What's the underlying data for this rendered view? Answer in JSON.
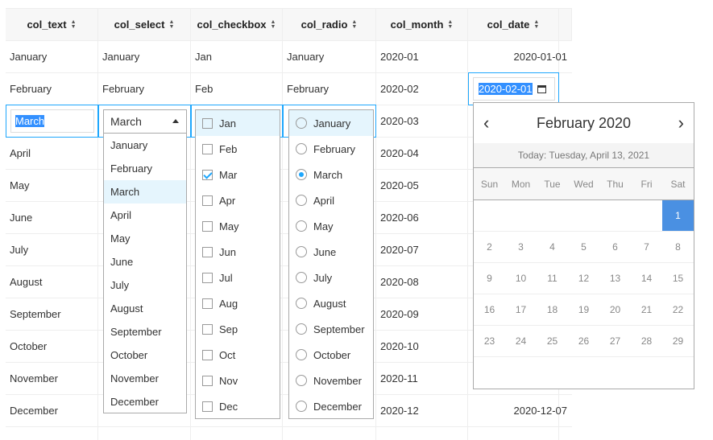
{
  "columns": [
    "col_text",
    "col_select",
    "col_checkbox",
    "col_radio",
    "col_month",
    "col_date"
  ],
  "rows": [
    [
      "January",
      "January",
      "Jan",
      "January",
      "2020-01",
      "2020-01-01"
    ],
    [
      "February",
      "February",
      "Feb",
      "February",
      "2020-02",
      ""
    ],
    [
      "",
      "",
      "",
      "",
      "2020-03",
      ""
    ],
    [
      "April",
      "",
      "",
      "",
      "2020-04",
      ""
    ],
    [
      "May",
      "",
      "",
      "",
      "2020-05",
      ""
    ],
    [
      "June",
      "",
      "",
      "",
      "2020-06",
      ""
    ],
    [
      "July",
      "",
      "",
      "",
      "2020-07",
      ""
    ],
    [
      "August",
      "",
      "",
      "",
      "2020-08",
      ""
    ],
    [
      "September",
      "",
      "",
      "",
      "2020-09",
      ""
    ],
    [
      "October",
      "",
      "",
      "",
      "2020-10",
      ""
    ],
    [
      "November",
      "",
      "",
      "",
      "2020-11",
      ""
    ],
    [
      "December",
      "",
      "",
      "",
      "2020-12",
      "2020-12-07"
    ]
  ],
  "editor": {
    "text_value": "March",
    "select_value": "March",
    "select_options": [
      "January",
      "February",
      "March",
      "April",
      "May",
      "June",
      "July",
      "August",
      "September",
      "October",
      "November",
      "December"
    ],
    "checkbox_options": [
      "Jan",
      "Feb",
      "Mar",
      "Apr",
      "May",
      "Jun",
      "Jul",
      "Aug",
      "Sep",
      "Oct",
      "Nov",
      "Dec"
    ],
    "checkbox_checked": [
      "Mar"
    ],
    "radio_options": [
      "January",
      "February",
      "March",
      "April",
      "May",
      "June",
      "July",
      "August",
      "September",
      "October",
      "November",
      "December"
    ],
    "radio_selected": "March",
    "date_value": "2020-02-01"
  },
  "calendar": {
    "title": "February 2020",
    "prev_label": "‹",
    "next_label": "›",
    "today": "Today: Tuesday, April 13, 2021",
    "weekdays": [
      "Sun",
      "Mon",
      "Tue",
      "Wed",
      "Thu",
      "Fri",
      "Sat"
    ],
    "weeks": [
      [
        "",
        "",
        "",
        "",
        "",
        "",
        "1"
      ],
      [
        "2",
        "3",
        "4",
        "5",
        "6",
        "7",
        "8"
      ],
      [
        "9",
        "10",
        "11",
        "12",
        "13",
        "14",
        "15"
      ],
      [
        "16",
        "17",
        "18",
        "19",
        "20",
        "21",
        "22"
      ],
      [
        "23",
        "24",
        "25",
        "26",
        "27",
        "28",
        "29"
      ],
      [
        "",
        "",
        "",
        "",
        "",
        "",
        ""
      ]
    ],
    "selected_day": "1",
    "accent": "#4a90e2"
  },
  "colors": {
    "edit_border": "#1ea7fd",
    "highlight": "#e5f5fd"
  }
}
